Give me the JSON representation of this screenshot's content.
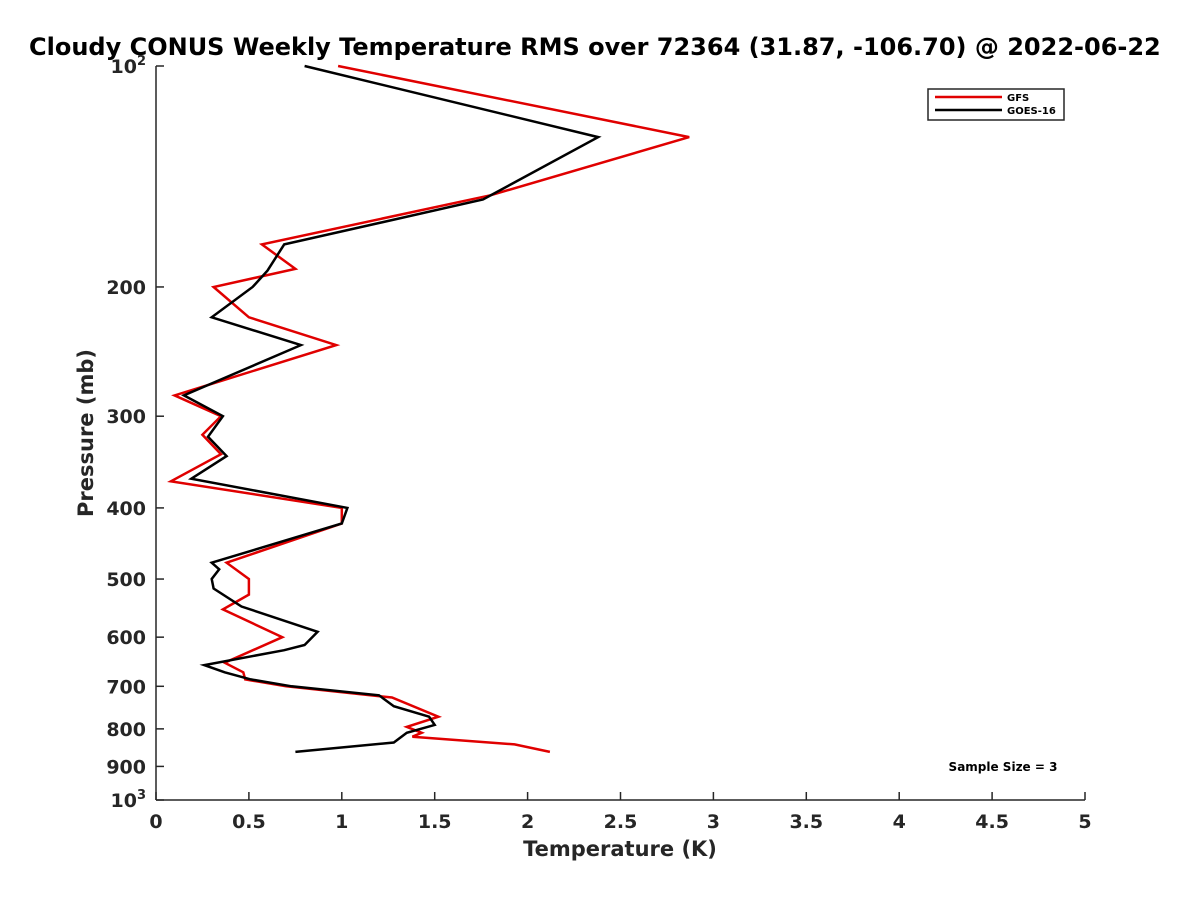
{
  "chart_data": {
    "type": "line",
    "title": "Cloudy CONUS Weekly Temperature RMS over 72364 (31.87, -106.70) @ 2022-06-22",
    "xlabel": "Temperature (K)",
    "ylabel": "Pressure (mb)",
    "xlim": [
      0,
      5
    ],
    "ylim": [
      100,
      1000
    ],
    "yscale": "log",
    "y_reversed": true,
    "grid": false,
    "legend_position": "top-right",
    "x_ticks": [
      {
        "value": 0,
        "label": "0"
      },
      {
        "value": 0.5,
        "label": "0.5"
      },
      {
        "value": 1,
        "label": "1"
      },
      {
        "value": 1.5,
        "label": "1.5"
      },
      {
        "value": 2,
        "label": "2"
      },
      {
        "value": 2.5,
        "label": "2.5"
      },
      {
        "value": 3,
        "label": "3"
      },
      {
        "value": 3.5,
        "label": "3.5"
      },
      {
        "value": 4,
        "label": "4"
      },
      {
        "value": 4.5,
        "label": "4.5"
      },
      {
        "value": 5,
        "label": "5"
      }
    ],
    "y_ticks": [
      {
        "value": 100,
        "base": "10",
        "exp": "2"
      },
      {
        "value": 200,
        "label": "200"
      },
      {
        "value": 300,
        "label": "300"
      },
      {
        "value": 400,
        "label": "400"
      },
      {
        "value": 500,
        "label": "500"
      },
      {
        "value": 600,
        "label": "600"
      },
      {
        "value": 700,
        "label": "700"
      },
      {
        "value": 800,
        "label": "800"
      },
      {
        "value": 900,
        "label": "900"
      },
      {
        "value": 1000,
        "base": "10",
        "exp": "3"
      }
    ],
    "series": [
      {
        "name": "GFS",
        "color": "#e00000",
        "points": [
          [
            0.98,
            100
          ],
          [
            2.87,
            125
          ],
          [
            1.8,
            150
          ],
          [
            0.57,
            175
          ],
          [
            0.75,
            189
          ],
          [
            0.31,
            200
          ],
          [
            0.5,
            220
          ],
          [
            0.97,
            240
          ],
          [
            0.1,
            281
          ],
          [
            0.35,
            300
          ],
          [
            0.25,
            318
          ],
          [
            0.35,
            338
          ],
          [
            0.08,
            368
          ],
          [
            1.0,
            400
          ],
          [
            1.0,
            420
          ],
          [
            0.38,
            475
          ],
          [
            0.5,
            500
          ],
          [
            0.5,
            525
          ],
          [
            0.36,
            550
          ],
          [
            0.68,
            600
          ],
          [
            0.37,
            650
          ],
          [
            0.47,
            670
          ],
          [
            0.48,
            685
          ],
          [
            0.7,
            700
          ],
          [
            1.27,
            725
          ],
          [
            1.52,
            770
          ],
          [
            1.35,
            795
          ],
          [
            1.43,
            810
          ],
          [
            1.38,
            820
          ],
          [
            1.93,
            840
          ],
          [
            2.12,
            860
          ]
        ]
      },
      {
        "name": "GOES-16",
        "color": "#000000",
        "points": [
          [
            0.8,
            100
          ],
          [
            2.38,
            125
          ],
          [
            1.76,
            152
          ],
          [
            0.69,
            175
          ],
          [
            0.6,
            190
          ],
          [
            0.52,
            200
          ],
          [
            0.3,
            220
          ],
          [
            0.78,
            240
          ],
          [
            0.15,
            281
          ],
          [
            0.36,
            300
          ],
          [
            0.28,
            320
          ],
          [
            0.38,
            340
          ],
          [
            0.19,
            365
          ],
          [
            1.03,
            400
          ],
          [
            1.0,
            420
          ],
          [
            0.3,
            475
          ],
          [
            0.34,
            485
          ],
          [
            0.3,
            500
          ],
          [
            0.31,
            515
          ],
          [
            0.46,
            545
          ],
          [
            0.87,
            590
          ],
          [
            0.8,
            615
          ],
          [
            0.69,
            625
          ],
          [
            0.26,
            655
          ],
          [
            0.37,
            670
          ],
          [
            0.51,
            685
          ],
          [
            0.73,
            700
          ],
          [
            1.2,
            720
          ],
          [
            1.28,
            745
          ],
          [
            1.47,
            770
          ],
          [
            1.5,
            790
          ],
          [
            1.35,
            810
          ],
          [
            1.28,
            835
          ],
          [
            0.75,
            860
          ]
        ]
      }
    ],
    "annotation": "Sample Size = 3"
  }
}
